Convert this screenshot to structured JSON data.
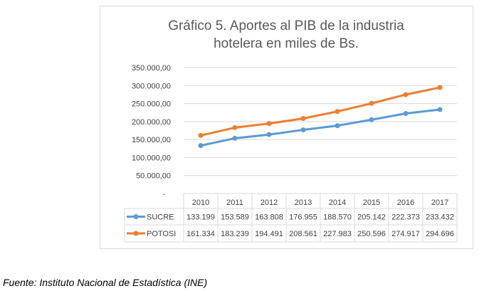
{
  "chart_data": {
    "type": "line",
    "title": [
      "Gráfico 5. Aportes al PIB de la industria",
      "hotelera en miles de Bs."
    ],
    "categories": [
      "2010",
      "2011",
      "2012",
      "2013",
      "2014",
      "2015",
      "2016",
      "2017"
    ],
    "series": [
      {
        "name": "SUCRE",
        "color": "#5b9bd5",
        "values": [
          133199,
          153589,
          163808,
          176955,
          188570,
          205142,
          222373,
          233432
        ],
        "labels": [
          "133.199",
          "153.589",
          "163.808",
          "176.955",
          "188.570",
          "205.142",
          "222.373",
          "233.432"
        ]
      },
      {
        "name": "POTOSI",
        "color": "#ed7d31",
        "values": [
          161334,
          183239,
          194491,
          208561,
          227983,
          250596,
          274917,
          294696
        ],
        "labels": [
          "161.334",
          "183.239",
          "194.491",
          "208.561",
          "227.983",
          "250.596",
          "274.917",
          "294.696"
        ]
      }
    ],
    "ylim": [
      0,
      350000
    ],
    "yticks": [
      0,
      50000,
      100000,
      150000,
      200000,
      250000,
      300000,
      350000
    ],
    "ytick_labels": [
      "-",
      "50.000,00",
      "100.000,00",
      "150.000,00",
      "200.000,00",
      "250.000,00",
      "300.000,00",
      "350.000,00"
    ],
    "grid": true,
    "legend": "data-table"
  },
  "caption": "Fuente: Instituto Nacional de Estadística (INE)"
}
